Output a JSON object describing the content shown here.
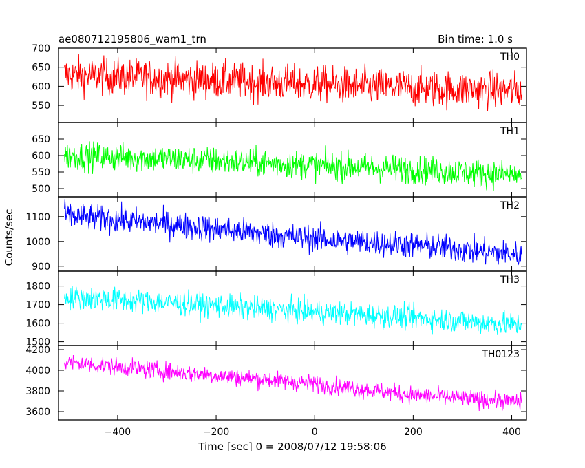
{
  "header": {
    "title": "ae080712195806_wam1_trn",
    "bin_time": "Bin time: 1.0 s"
  },
  "axes": {
    "xlabel": "Time [sec] 0 = 2008/07/12 19:58:06",
    "ylabel": "Counts/sec",
    "xlim": [
      -520,
      430
    ],
    "x_ticks": [
      -400,
      -200,
      0,
      200,
      400
    ],
    "x_tick_labels": [
      "−400",
      "−200",
      "0",
      "200",
      "400"
    ]
  },
  "chart_data": {
    "type": "line",
    "x_start": -508,
    "x_end": 420,
    "bin": 1.0,
    "panels": [
      {
        "name": "TH0",
        "color": "#ff0000",
        "ylim": [
          505,
          700
        ],
        "yticks": [
          550,
          600,
          650,
          700
        ],
        "trend": [
          [
            -508,
            630
          ],
          [
            -300,
            620
          ],
          [
            0,
            605
          ],
          [
            200,
            595
          ],
          [
            420,
            588
          ]
        ],
        "noise": 34
      },
      {
        "name": "TH1",
        "color": "#00ff00",
        "ylim": [
          475,
          700
        ],
        "yticks": [
          500,
          550,
          600,
          650
        ],
        "trend": [
          [
            -508,
            600
          ],
          [
            -300,
            590
          ],
          [
            0,
            570
          ],
          [
            200,
            558
          ],
          [
            420,
            540
          ]
        ],
        "noise": 30
      },
      {
        "name": "TH2",
        "color": "#0000ff",
        "ylim": [
          880,
          1180
        ],
        "yticks": [
          900,
          1000,
          1100
        ],
        "trend": [
          [
            -508,
            1105
          ],
          [
            -300,
            1070
          ],
          [
            0,
            1010
          ],
          [
            200,
            985
          ],
          [
            420,
            945
          ]
        ],
        "noise": 38
      },
      {
        "name": "TH3",
        "color": "#00ffff",
        "ylim": [
          1480,
          1880
        ],
        "yticks": [
          1500,
          1600,
          1700,
          1800
        ],
        "trend": [
          [
            -508,
            1740
          ],
          [
            -300,
            1710
          ],
          [
            0,
            1660
          ],
          [
            200,
            1630
          ],
          [
            420,
            1590
          ]
        ],
        "noise": 45
      },
      {
        "name": "TH0123",
        "color": "#ff00ff",
        "ylim": [
          3520,
          4240
        ],
        "yticks": [
          3600,
          3800,
          4000,
          4200
        ],
        "trend": [
          [
            -508,
            4080
          ],
          [
            -300,
            3990
          ],
          [
            0,
            3870
          ],
          [
            200,
            3760
          ],
          [
            420,
            3690
          ]
        ],
        "noise": 60
      }
    ]
  }
}
